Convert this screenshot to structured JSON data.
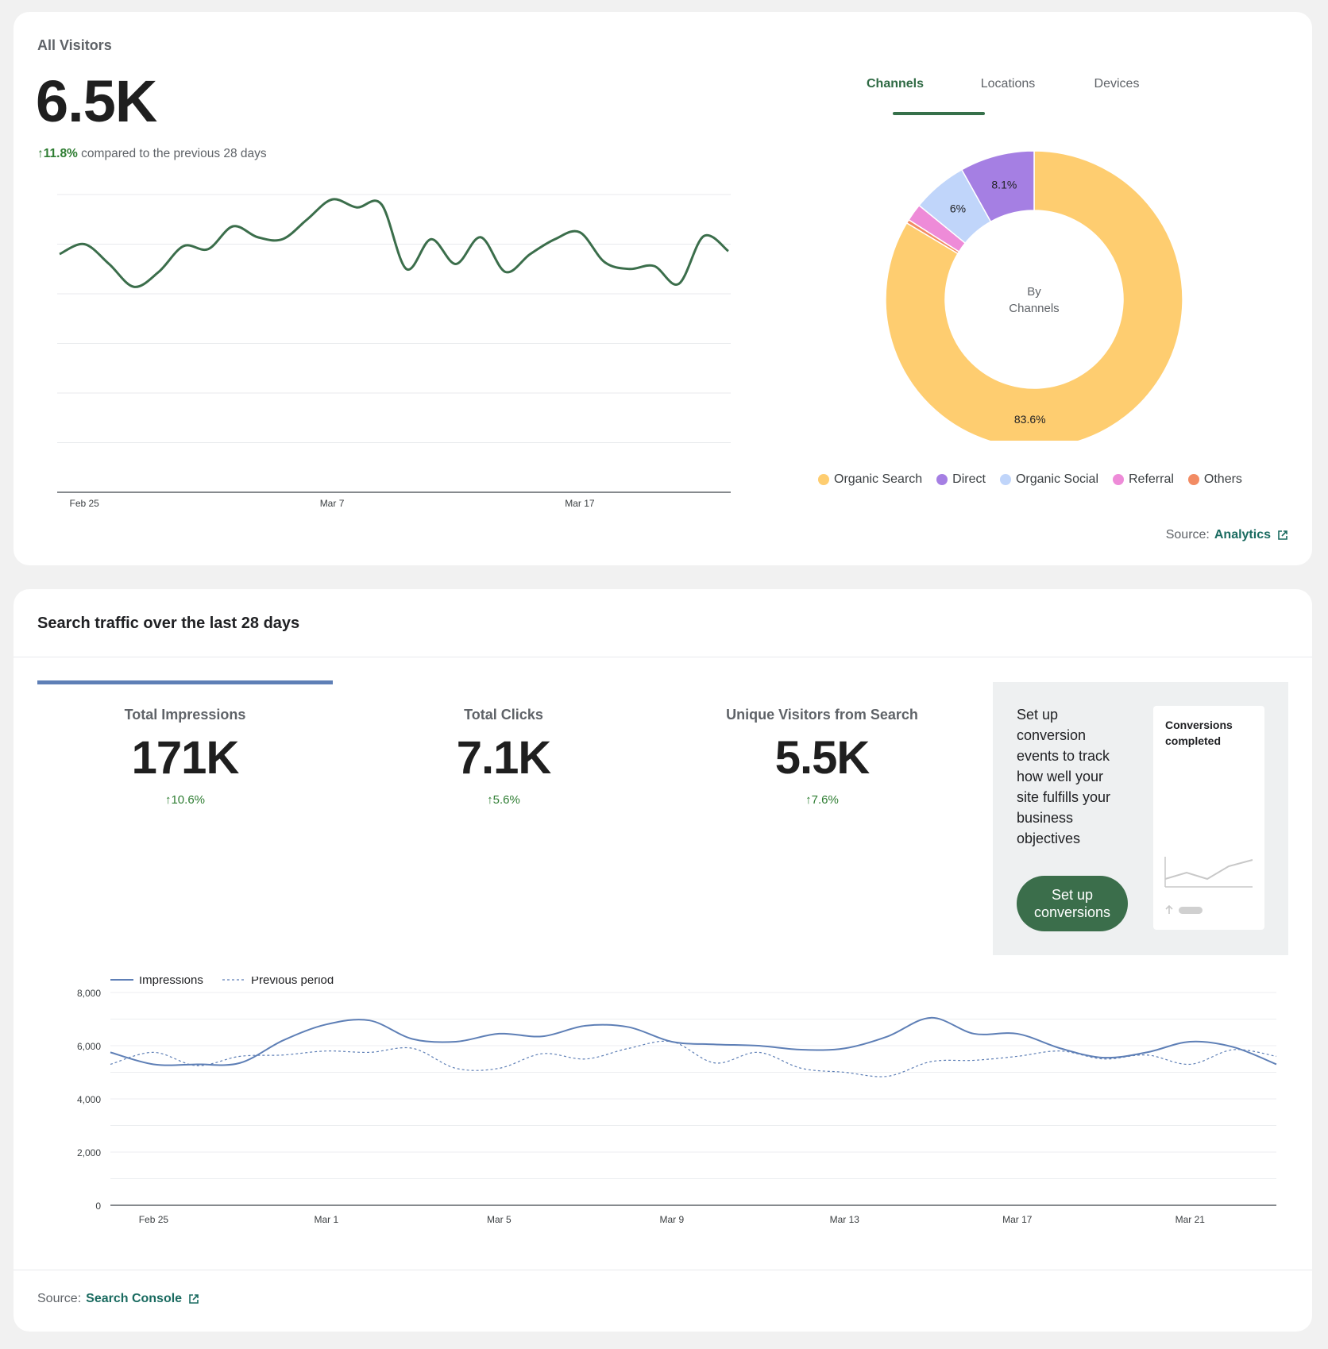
{
  "visitors": {
    "title": "All Visitors",
    "total": "6.5K",
    "change": "11.8%",
    "change_text": "compared to the previous 28 days",
    "tabs": [
      {
        "label": "Channels",
        "active": true
      },
      {
        "label": "Locations",
        "active": false
      },
      {
        "label": "Devices",
        "active": false
      }
    ],
    "source_label": "Source:",
    "source_link": "Analytics"
  },
  "visitors_chart": {
    "type": "line",
    "x_tick_labels": [
      "Feb 25",
      "Mar 7",
      "Mar 17"
    ],
    "y_ticks": [
      0,
      50,
      100,
      150,
      200,
      250,
      300
    ],
    "ylim": [
      0,
      300
    ],
    "color": "#3b6e4b",
    "values": [
      240,
      250,
      230,
      207,
      222,
      248,
      245,
      268,
      257,
      255,
      275,
      295,
      287,
      290,
      225,
      255,
      230,
      257,
      222,
      240,
      255,
      262,
      232,
      225,
      228,
      210,
      258,
      243
    ]
  },
  "channels_chart": {
    "type": "pie",
    "center_label_1": "By",
    "center_label_2": "Channels",
    "slices": [
      {
        "name": "Organic Search",
        "value": 83.6,
        "label": "83.6%",
        "color": "#fecd70"
      },
      {
        "name": "Others",
        "value": 0.4,
        "label": "",
        "color": "#f28b63"
      },
      {
        "name": "Referral",
        "value": 1.9,
        "label": "",
        "color": "#ee8bd8"
      },
      {
        "name": "Organic Social",
        "value": 6.0,
        "label": "6%",
        "color": "#c0d5fa"
      },
      {
        "name": "Direct",
        "value": 8.1,
        "label": "8.1%",
        "color": "#a57fe3"
      }
    ],
    "legend": [
      {
        "name": "Organic Search",
        "color": "#fecd70"
      },
      {
        "name": "Direct",
        "color": "#a57fe3"
      },
      {
        "name": "Organic Social",
        "color": "#c0d5fa"
      },
      {
        "name": "Referral",
        "color": "#ee8bd8"
      },
      {
        "name": "Others",
        "color": "#f28b63"
      }
    ]
  },
  "search": {
    "title": "Search traffic over the last 28 days",
    "metrics": [
      {
        "label": "Total Impressions",
        "value": "171K",
        "change": "10.6%"
      },
      {
        "label": "Total Clicks",
        "value": "7.1K",
        "change": "5.6%"
      },
      {
        "label": "Unique Visitors from Search",
        "value": "5.5K",
        "change": "7.6%"
      }
    ],
    "promo_text": "Set up conversion events to track how well your site fulfills your business objectives",
    "promo_button": "Set up conversions",
    "mini_card_title": "Conversions completed",
    "source_label": "Source:",
    "source_link": "Search Console"
  },
  "chart_data": {
    "type": "line",
    "x_tick_labels": [
      "Feb 25",
      "Mar 1",
      "Mar 5",
      "Mar 9",
      "Mar 13",
      "Mar 17",
      "Mar 21"
    ],
    "y_ticks": [
      0,
      2000,
      4000,
      6000,
      8000
    ],
    "y_tick_labels": [
      "0",
      "2,000",
      "4,000",
      "6,000",
      "8,000"
    ],
    "ylim": [
      0,
      8000
    ],
    "legend": [
      "Impressions",
      "Previous period"
    ],
    "series": [
      {
        "name": "Impressions",
        "color": "#5e7fb6",
        "style": "solid",
        "values": [
          5750,
          5300,
          5300,
          5350,
          6200,
          6800,
          6950,
          6250,
          6150,
          6450,
          6350,
          6750,
          6700,
          6150,
          6050,
          6000,
          5850,
          5900,
          6350,
          7050,
          6450,
          6450,
          5900,
          5550,
          5750,
          6150,
          5950,
          5300
        ]
      },
      {
        "name": "Previous period",
        "color": "#5e7fb6",
        "style": "dashed",
        "values": [
          5300,
          5750,
          5250,
          5600,
          5650,
          5800,
          5750,
          5900,
          5150,
          5150,
          5700,
          5500,
          5900,
          6150,
          5350,
          5750,
          5150,
          5000,
          4850,
          5400,
          5450,
          5600,
          5800,
          5500,
          5650,
          5300,
          5850,
          5600
        ]
      }
    ]
  }
}
